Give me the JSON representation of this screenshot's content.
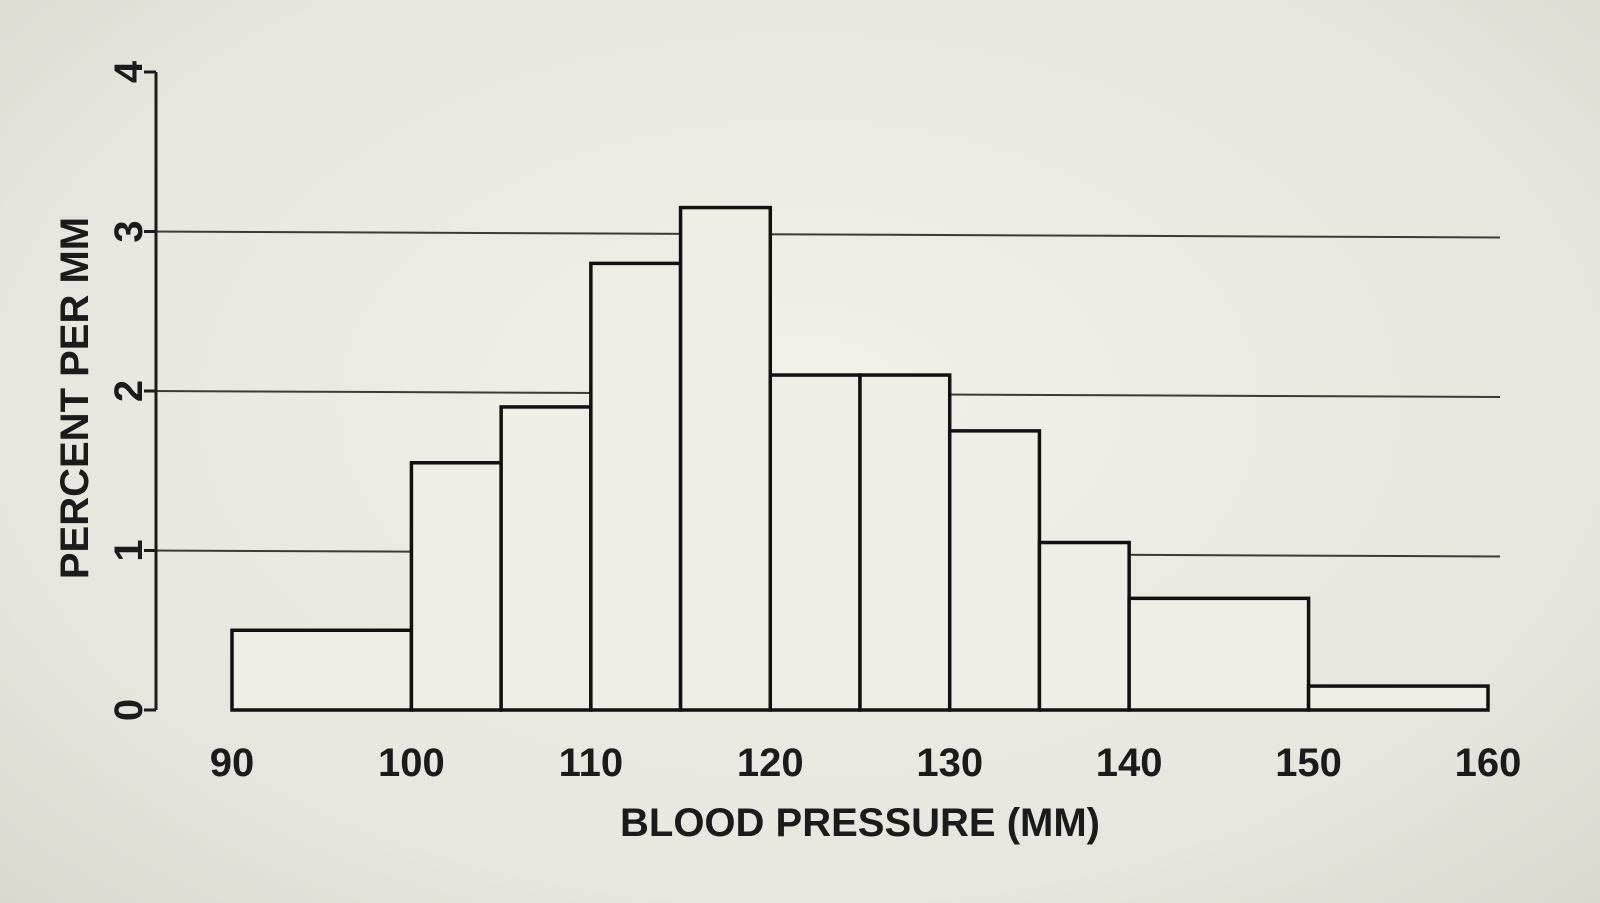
{
  "chart_data": {
    "type": "histogram",
    "xlabel": "BLOOD PRESSURE (MM)",
    "ylabel": "PERCENT PER MM",
    "xlim": [
      90,
      160
    ],
    "ylim": [
      0,
      4
    ],
    "x_ticks": [
      "90",
      "100",
      "110",
      "120",
      "130",
      "140",
      "150",
      "160"
    ],
    "y_ticks": [
      "0",
      "1",
      "2",
      "3",
      "4"
    ],
    "gridlines_y": [
      1,
      2,
      3
    ],
    "bins": [
      {
        "from": 90,
        "to": 100,
        "value": 0.5
      },
      {
        "from": 100,
        "to": 105,
        "value": 1.55
      },
      {
        "from": 105,
        "to": 110,
        "value": 1.9
      },
      {
        "from": 110,
        "to": 115,
        "value": 2.8
      },
      {
        "from": 115,
        "to": 120,
        "value": 3.15
      },
      {
        "from": 120,
        "to": 125,
        "value": 2.1
      },
      {
        "from": 125,
        "to": 130,
        "value": 2.1
      },
      {
        "from": 130,
        "to": 135,
        "value": 1.75
      },
      {
        "from": 135,
        "to": 140,
        "value": 1.05
      },
      {
        "from": 140,
        "to": 150,
        "value": 0.7
      },
      {
        "from": 150,
        "to": 160,
        "value": 0.15
      }
    ]
  }
}
